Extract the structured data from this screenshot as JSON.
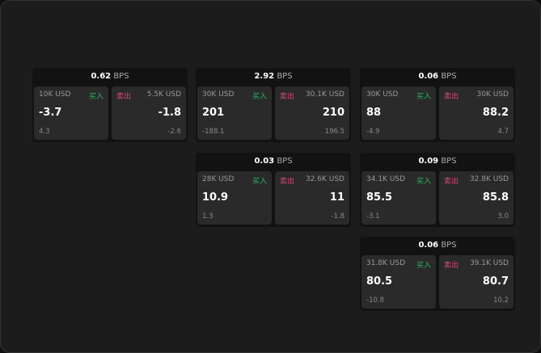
{
  "colors": {
    "buy": "#2fb463",
    "sell": "#e0457b"
  },
  "buy_label": "买入",
  "sell_label": "卖出",
  "unit": "BPS",
  "cards": [
    {
      "spread": "0.62",
      "bid": {
        "size": "10K USD",
        "price": "-3.7",
        "change": "4.3"
      },
      "ask": {
        "size": "5.5K USD",
        "price": "-1.8",
        "change": "-2.6"
      }
    },
    {
      "spread": "2.92",
      "bid": {
        "size": "30K USD",
        "price": "201",
        "change": "-188.1"
      },
      "ask": {
        "size": "30.1K USD",
        "price": "210",
        "change": "196.5"
      }
    },
    {
      "spread": "0.06",
      "bid": {
        "size": "30K USD",
        "price": "88",
        "change": "-4.9"
      },
      "ask": {
        "size": "30K USD",
        "price": "88.2",
        "change": "4.7"
      }
    },
    {
      "spread": "0.03",
      "bid": {
        "size": "28K USD",
        "price": "10.9",
        "change": "1.3"
      },
      "ask": {
        "size": "32.6K USD",
        "price": "11",
        "change": "-1.8"
      }
    },
    {
      "spread": "0.09",
      "bid": {
        "size": "34.1K USD",
        "price": "85.5",
        "change": "-3.1"
      },
      "ask": {
        "size": "32.8K USD",
        "price": "85.8",
        "change": "3.0"
      }
    },
    {
      "spread": "0.06",
      "bid": {
        "size": "31.8K USD",
        "price": "80.5",
        "change": "-10.8"
      },
      "ask": {
        "size": "39.1K USD",
        "price": "80.7",
        "change": "10.2"
      }
    }
  ]
}
